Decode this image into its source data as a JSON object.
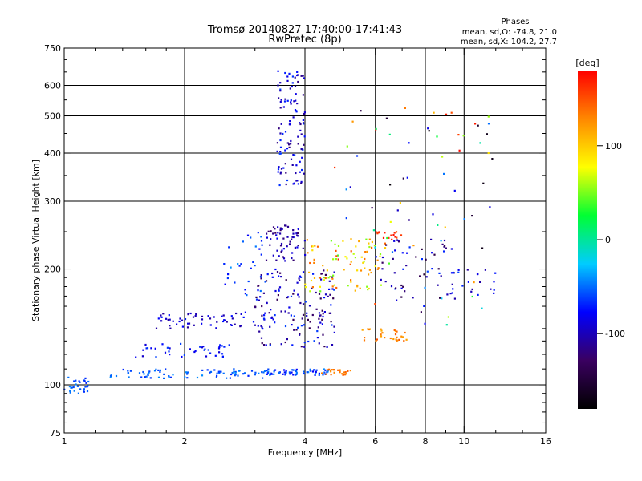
{
  "chart_data": {
    "type": "scatter",
    "title": "Tromsø 20140827 17:40:00-17:41:43",
    "subtitle": "RwPretec (8p)",
    "xlabel": "Frequency [MHz]",
    "ylabel": "Stationary phase Virtual Height [km]",
    "x_scale": "log",
    "y_scale": "log",
    "xlim": [
      1,
      16
    ],
    "ylim": [
      75,
      750
    ],
    "grid": true,
    "x_ticks": [
      1,
      2,
      4,
      6,
      8,
      10,
      16
    ],
    "x_grid": [
      2,
      4,
      6,
      8,
      10
    ],
    "x_minor_ticks": [
      1.2,
      1.4,
      1.6,
      1.8,
      3,
      5,
      7,
      9,
      12,
      14
    ],
    "y_ticks": [
      75,
      100,
      200,
      300,
      400,
      500,
      600,
      750
    ],
    "y_grid": [
      100,
      200,
      300,
      400,
      500,
      600
    ],
    "y_minor_ticks": [
      80,
      85,
      90,
      95,
      110,
      120,
      130,
      140,
      150,
      160,
      170,
      180,
      190,
      250,
      350,
      450,
      550,
      650,
      700
    ],
    "legend_title": "Phases",
    "legend_lines": [
      "mean, sd,O: -74.8, 21.0",
      "mean, sd,X: 104.2, 27.7"
    ],
    "colorbar": {
      "label": "[deg]",
      "min": -180,
      "max": 180,
      "ticks": [
        100,
        0,
        -100
      ],
      "colormap": [
        "#000000",
        "#3a0060",
        "#0000ff",
        "#00ccff",
        "#00ff33",
        "#ffff00",
        "#ff8800",
        "#ff0000"
      ]
    },
    "clusters": [
      {
        "f": [
          1.0,
          1.15
        ],
        "h": [
          94,
          106
        ],
        "phase": [
          -70,
          -40
        ],
        "n": 30
      },
      {
        "f": [
          1.3,
          3.2
        ],
        "h": [
          104,
          110
        ],
        "phase": [
          -70,
          -40
        ],
        "n": 80
      },
      {
        "f": [
          3.2,
          4.6
        ],
        "h": [
          106,
          110
        ],
        "phase": [
          -80,
          -40
        ],
        "n": 60
      },
      {
        "f": [
          4.4,
          5.2
        ],
        "h": [
          106,
          110
        ],
        "phase": [
          120,
          150
        ],
        "n": 25
      },
      {
        "f": [
          1.5,
          2.6
        ],
        "h": [
          118,
          128
        ],
        "phase": [
          -100,
          -60
        ],
        "n": 40
      },
      {
        "f": [
          1.7,
          3.3
        ],
        "h": [
          140,
          155
        ],
        "phase": [
          -110,
          -70
        ],
        "n": 60
      },
      {
        "f": [
          3.0,
          4.8
        ],
        "h": [
          125,
          200
        ],
        "phase": [
          -140,
          -60
        ],
        "n": 150
      },
      {
        "f": [
          3.2,
          4.0
        ],
        "h": [
          210,
          260
        ],
        "phase": [
          -130,
          -80
        ],
        "n": 60
      },
      {
        "f": [
          3.4,
          4.0
        ],
        "h": [
          330,
          660
        ],
        "phase": [
          -120,
          -60
        ],
        "n": 110
      },
      {
        "f": [
          2.5,
          3.2
        ],
        "h": [
          170,
          250
        ],
        "phase": [
          -80,
          -40
        ],
        "n": 30
      },
      {
        "f": [
          4.0,
          6.5
        ],
        "h": [
          175,
          240
        ],
        "phase": [
          40,
          150
        ],
        "n": 90
      },
      {
        "f": [
          5.5,
          7.2
        ],
        "h": [
          130,
          140
        ],
        "phase": [
          110,
          150
        ],
        "n": 30
      },
      {
        "f": [
          6.0,
          7.0
        ],
        "h": [
          238,
          250
        ],
        "phase": [
          150,
          175
        ],
        "n": 15
      },
      {
        "f": [
          6.0,
          9.5
        ],
        "h": [
          160,
          240
        ],
        "phase": [
          -150,
          -60
        ],
        "n": 60
      },
      {
        "f": [
          4.6,
          12.0
        ],
        "h": [
          140,
          540
        ],
        "phase": [
          -180,
          180
        ],
        "n": 70
      },
      {
        "f": [
          9.0,
          12.0
        ],
        "h": [
          170,
          200
        ],
        "phase": [
          -110,
          -60
        ],
        "n": 20
      }
    ]
  }
}
